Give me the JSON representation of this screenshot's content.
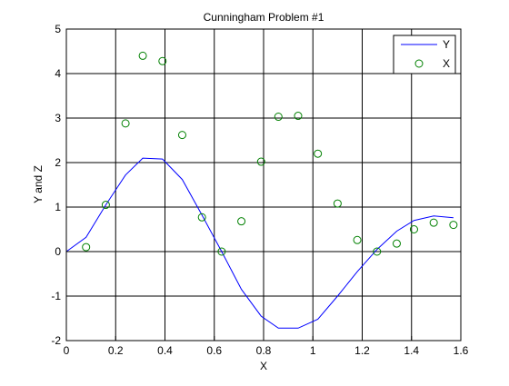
{
  "chart_data": {
    "type": "line",
    "title": "Cunningham Problem #1",
    "xlabel": "X",
    "ylabel": "Y and Z",
    "xlim": [
      0,
      1.6
    ],
    "ylim": [
      -2,
      5
    ],
    "grid": true,
    "legend_position": "top-right",
    "x_ticks": [
      0,
      0.2,
      0.4,
      0.6,
      0.8,
      1,
      1.2,
      1.4,
      1.6
    ],
    "x_tick_labels": [
      "0",
      "0.2",
      "0.4",
      "0.6",
      "0.8",
      "1",
      "1.2",
      "1.4",
      "1.6"
    ],
    "y_ticks": [
      -2,
      -1,
      0,
      1,
      2,
      3,
      4,
      5
    ],
    "y_tick_labels": [
      "-2",
      "-1",
      "0",
      "1",
      "2",
      "3",
      "4",
      "5"
    ],
    "series": [
      {
        "name": "Y",
        "kind": "line",
        "color": "#0000ff",
        "x": [
          0,
          0.08,
          0.16,
          0.24,
          0.31,
          0.39,
          0.47,
          0.55,
          0.63,
          0.71,
          0.79,
          0.86,
          0.94,
          1.02,
          1.1,
          1.18,
          1.26,
          1.34,
          1.41,
          1.49,
          1.57
        ],
        "y": [
          0,
          0.32,
          1.05,
          1.72,
          2.1,
          2.08,
          1.62,
          0.82,
          0.0,
          -0.85,
          -1.45,
          -1.72,
          -1.72,
          -1.52,
          -1.0,
          -0.45,
          0.05,
          0.46,
          0.7,
          0.8,
          0.76
        ]
      },
      {
        "name": "X",
        "kind": "scatter",
        "marker": "circle",
        "color": "#008000",
        "x": [
          0.08,
          0.16,
          0.24,
          0.31,
          0.39,
          0.47,
          0.55,
          0.63,
          0.71,
          0.79,
          0.86,
          0.94,
          1.02,
          1.1,
          1.18,
          1.26,
          1.34,
          1.41,
          1.49,
          1.57
        ],
        "y": [
          0.1,
          1.05,
          2.88,
          4.4,
          4.28,
          2.62,
          0.77,
          0.0,
          0.68,
          2.02,
          3.03,
          3.05,
          2.2,
          1.08,
          0.26,
          0.0,
          0.18,
          0.5,
          0.65,
          0.6
        ]
      }
    ]
  }
}
